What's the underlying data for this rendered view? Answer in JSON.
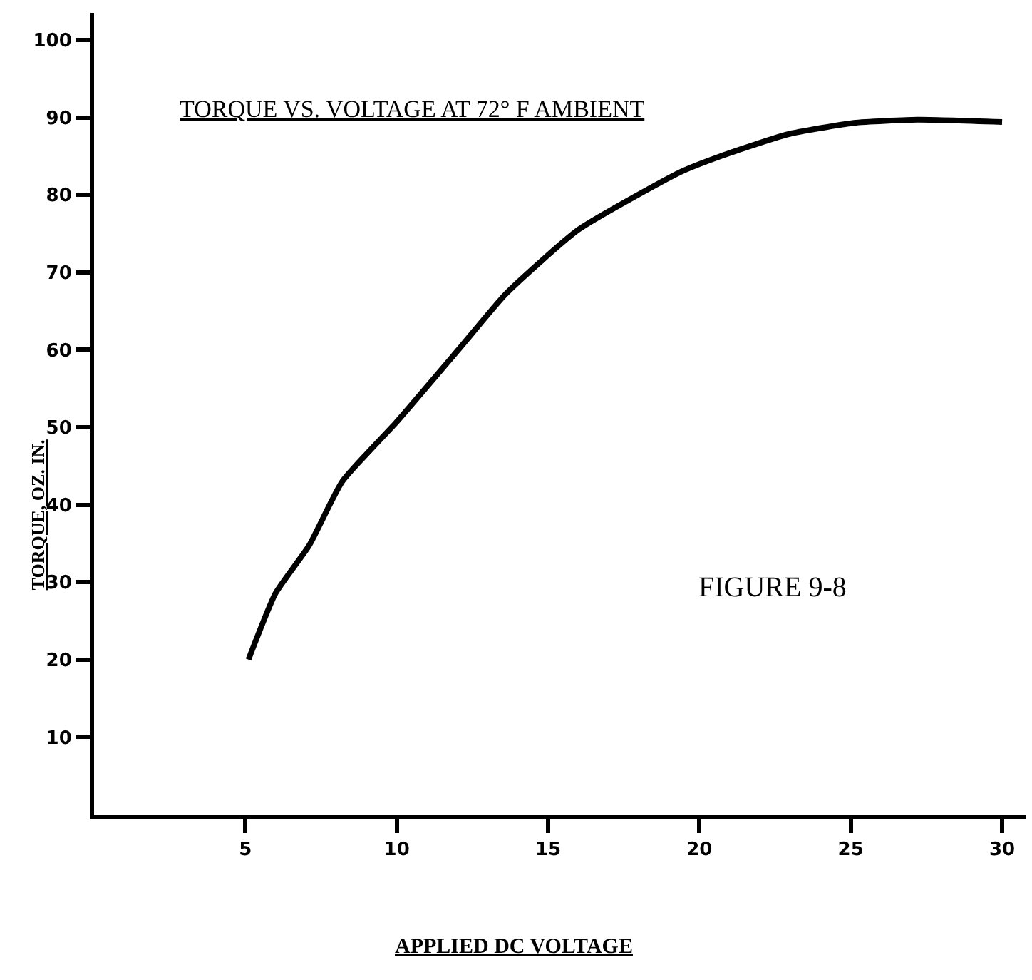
{
  "chart_data": {
    "type": "line",
    "title": "TORQUE VS. VOLTAGE AT 72° F AMBIENT",
    "xlabel": "APPLIED DC VOLTAGE",
    "ylabel": "TORQUE, OZ. IN.",
    "annotations": [
      "FIGURE 9-8"
    ],
    "x": [
      5.1,
      6.0,
      7.1,
      8.2,
      10.0,
      12.1,
      13.6,
      16.0,
      19.4,
      20.7,
      22.9,
      25.1,
      27.2,
      30.0
    ],
    "series": [
      {
        "color": "#000000",
        "values": [
          20,
          28.6,
          34.7,
          43,
          50.7,
          60.3,
          67.2,
          75.5,
          83,
          85,
          87.8,
          89.3,
          89.7,
          89.4
        ]
      }
    ],
    "xlim": [
      0,
      30.8
    ],
    "ylim": [
      0,
      103.5
    ],
    "xticks": [
      5,
      10,
      15,
      20,
      25,
      30
    ],
    "yticks": [
      10,
      20,
      30,
      40,
      50,
      60,
      70,
      80,
      90,
      100
    ],
    "legend": false,
    "marker": "none",
    "line_style": "solid"
  }
}
